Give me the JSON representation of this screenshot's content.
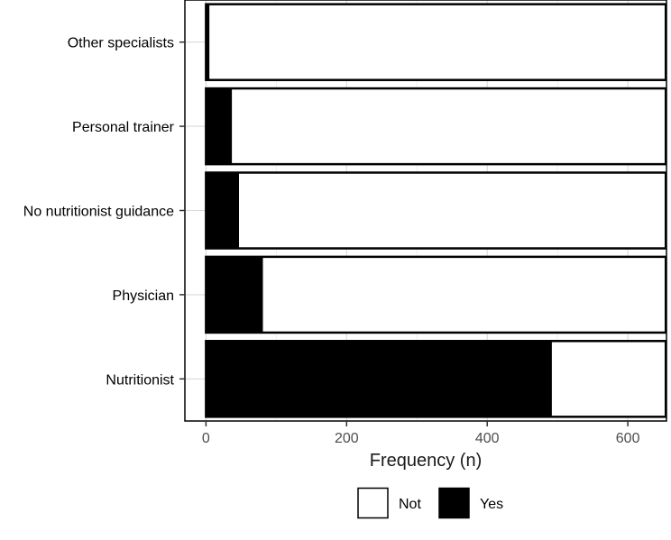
{
  "chart_data": {
    "type": "bar",
    "orientation": "horizontal",
    "stacked": true,
    "categories": [
      "Nutritionist",
      "Physician",
      "No nutritionist guidance",
      "Personal trainer",
      "Other specialists"
    ],
    "series": [
      {
        "name": "Yes",
        "values": [
          492,
          81,
          47,
          37,
          5
        ],
        "color": "#000000"
      },
      {
        "name": "Not",
        "values": [
          162,
          573,
          607,
          617,
          649
        ],
        "color": "#ffffff"
      }
    ],
    "xlabel": "Frequency (n)",
    "xlim": [
      -30,
      655
    ],
    "xticks": [
      0,
      200,
      400,
      600
    ],
    "grid": true,
    "legend": {
      "position": "bottom",
      "entries": [
        "Not",
        "Yes"
      ]
    }
  }
}
